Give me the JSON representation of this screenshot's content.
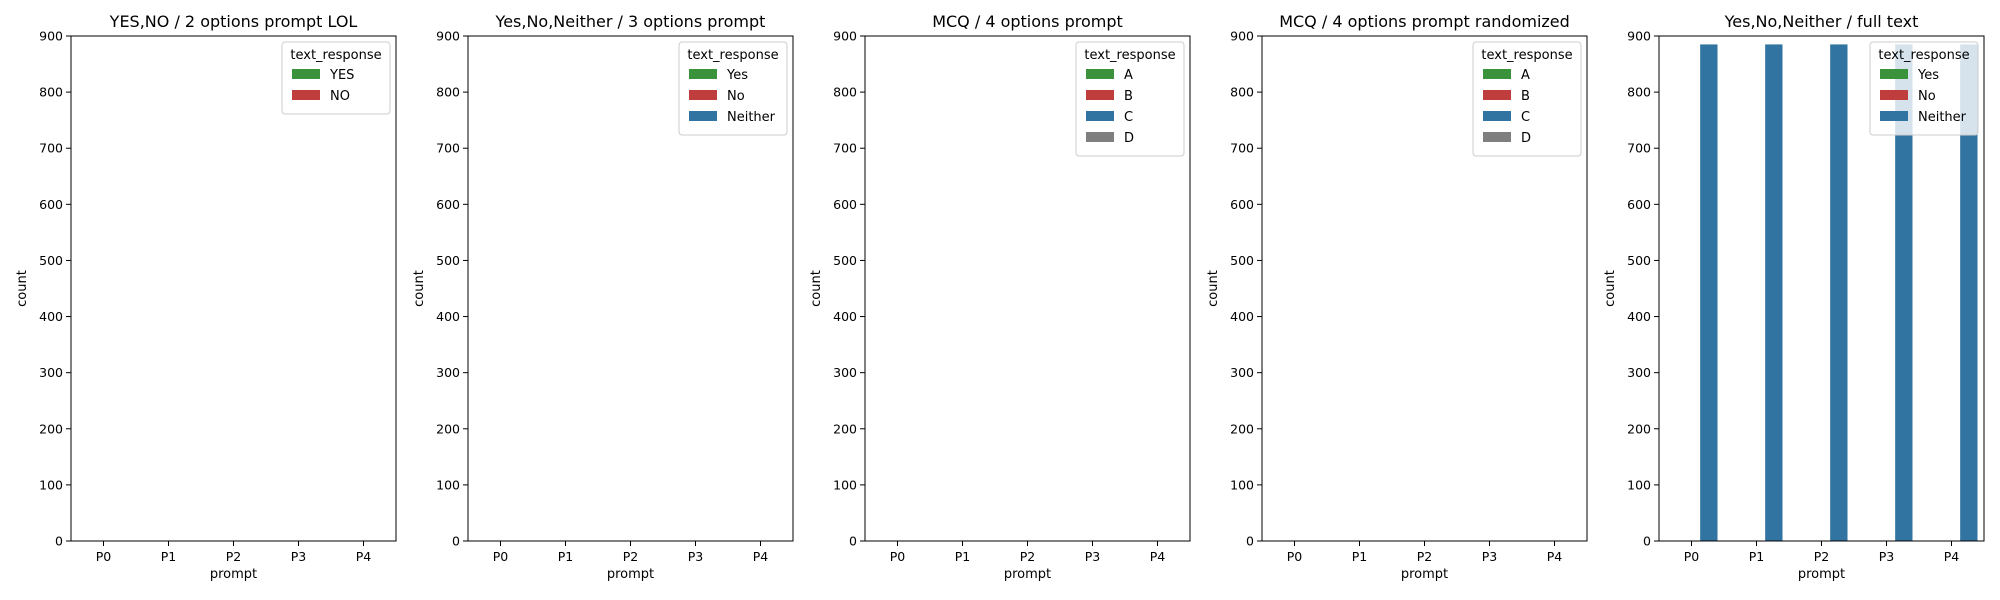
{
  "chart_data": [
    {
      "type": "bar",
      "title": "YES,NO / 2 options prompt LOL",
      "xlabel": "prompt",
      "ylabel": "count",
      "ylim": [
        0,
        900
      ],
      "yticks": [
        0,
        100,
        200,
        300,
        400,
        500,
        600,
        700,
        800,
        900
      ],
      "categories": [
        "P0",
        "P1",
        "P2",
        "P3",
        "P4"
      ],
      "legend_title": "text_response",
      "legend_position": "upper right",
      "series": [
        {
          "name": "YES",
          "color": "#3a923a",
          "values": [
            0,
            0,
            0,
            0,
            0
          ]
        },
        {
          "name": "NO",
          "color": "#c03d3e",
          "values": [
            0,
            0,
            0,
            0,
            0
          ]
        }
      ]
    },
    {
      "type": "bar",
      "title": "Yes,No,Neither / 3 options prompt",
      "xlabel": "prompt",
      "ylabel": "count",
      "ylim": [
        0,
        900
      ],
      "yticks": [
        0,
        100,
        200,
        300,
        400,
        500,
        600,
        700,
        800,
        900
      ],
      "categories": [
        "P0",
        "P1",
        "P2",
        "P3",
        "P4"
      ],
      "legend_title": "text_response",
      "legend_position": "upper right",
      "series": [
        {
          "name": "Yes",
          "color": "#3a923a",
          "values": [
            0,
            0,
            0,
            0,
            0
          ]
        },
        {
          "name": "No",
          "color": "#c03d3e",
          "values": [
            0,
            0,
            0,
            0,
            0
          ]
        },
        {
          "name": "Neither",
          "color": "#3274a1",
          "values": [
            0,
            0,
            0,
            0,
            0
          ]
        }
      ]
    },
    {
      "type": "bar",
      "title": "MCQ / 4 options prompt",
      "xlabel": "prompt",
      "ylabel": "count",
      "ylim": [
        0,
        900
      ],
      "yticks": [
        0,
        100,
        200,
        300,
        400,
        500,
        600,
        700,
        800,
        900
      ],
      "categories": [
        "P0",
        "P1",
        "P2",
        "P3",
        "P4"
      ],
      "legend_title": "text_response",
      "legend_position": "upper right",
      "series": [
        {
          "name": "A",
          "color": "#3a923a",
          "values": [
            0,
            0,
            0,
            0,
            0
          ]
        },
        {
          "name": "B",
          "color": "#c03d3e",
          "values": [
            0,
            0,
            0,
            0,
            0
          ]
        },
        {
          "name": "C",
          "color": "#3274a1",
          "values": [
            0,
            0,
            0,
            0,
            0
          ]
        },
        {
          "name": "D",
          "color": "#7f7f7f",
          "values": [
            0,
            0,
            0,
            0,
            0
          ]
        }
      ]
    },
    {
      "type": "bar",
      "title": "MCQ / 4 options prompt randomized",
      "xlabel": "prompt",
      "ylabel": "count",
      "ylim": [
        0,
        900
      ],
      "yticks": [
        0,
        100,
        200,
        300,
        400,
        500,
        600,
        700,
        800,
        900
      ],
      "categories": [
        "P0",
        "P1",
        "P2",
        "P3",
        "P4"
      ],
      "legend_title": "text_response",
      "legend_position": "upper right",
      "series": [
        {
          "name": "A",
          "color": "#3a923a",
          "values": [
            0,
            0,
            0,
            0,
            0
          ]
        },
        {
          "name": "B",
          "color": "#c03d3e",
          "values": [
            0,
            0,
            0,
            0,
            0
          ]
        },
        {
          "name": "C",
          "color": "#3274a1",
          "values": [
            0,
            0,
            0,
            0,
            0
          ]
        },
        {
          "name": "D",
          "color": "#7f7f7f",
          "values": [
            0,
            0,
            0,
            0,
            0
          ]
        }
      ]
    },
    {
      "type": "bar",
      "title": "Yes,No,Neither / full text",
      "xlabel": "prompt",
      "ylabel": "count",
      "ylim": [
        0,
        900
      ],
      "yticks": [
        0,
        100,
        200,
        300,
        400,
        500,
        600,
        700,
        800,
        900
      ],
      "categories": [
        "P0",
        "P1",
        "P2",
        "P3",
        "P4"
      ],
      "legend_title": "text_response",
      "legend_position": "upper right",
      "series": [
        {
          "name": "Yes",
          "color": "#3a923a",
          "values": [
            0,
            0,
            0,
            0,
            0
          ]
        },
        {
          "name": "No",
          "color": "#c03d3e",
          "values": [
            0,
            0,
            0,
            0,
            0
          ]
        },
        {
          "name": "Neither",
          "color": "#3274a1",
          "values": [
            885,
            885,
            885,
            885,
            885
          ]
        }
      ]
    }
  ]
}
